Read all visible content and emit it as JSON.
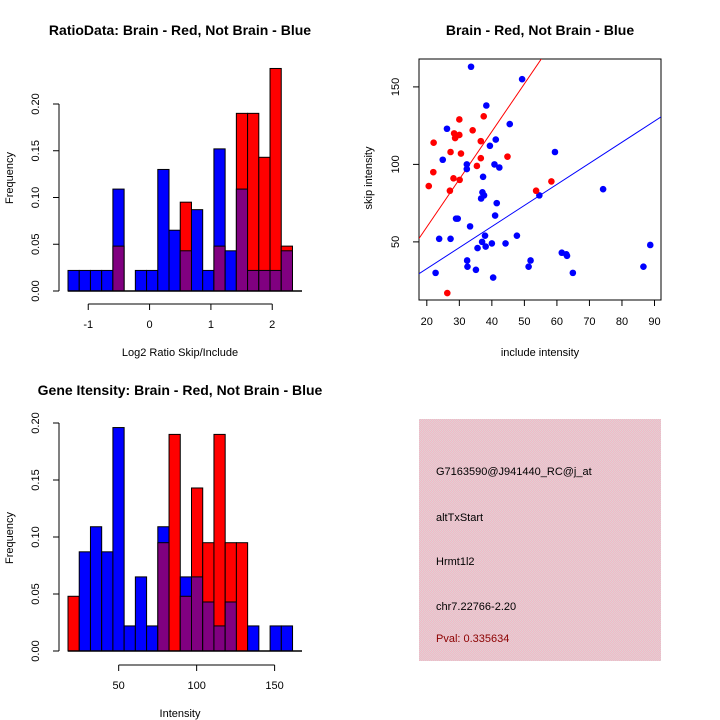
{
  "colors": {
    "brain": "#ff0000",
    "not_brain": "#0000ff",
    "overlap": "#800080",
    "panel_bg": "#eec4cc",
    "pval": "#8b0000"
  },
  "chart_data": [
    {
      "id": "ratio_hist",
      "type": "bar",
      "title": "RatioData: Brain - Red, Not Brain - Blue",
      "xlabel": "Log2 Ratio Skip/Include",
      "ylabel": "Frequency",
      "xlim": [
        -1.33,
        2.42
      ],
      "ylim": [
        0,
        0.2
      ],
      "xticks": [
        -1,
        0,
        1,
        2
      ],
      "xtick_labels": [
        "-1",
        "0",
        "1",
        "2"
      ],
      "yticks": [
        0,
        0.05,
        0.1,
        0.15,
        0.2
      ],
      "ytick_labels": [
        "0.00",
        "0.05",
        "0.10",
        "0.15",
        "0.20"
      ],
      "bin_start": -1.33,
      "bin_width": 0.183,
      "series": [
        {
          "name": "Not Brain",
          "color": "blue",
          "values": [
            0.022,
            0.022,
            0.022,
            0.022,
            0.109,
            0,
            0.022,
            0.022,
            0.13,
            0.065,
            0.043,
            0.087,
            0.022,
            0.152,
            0.043,
            0.109,
            0.022,
            0.022,
            0.022,
            0.043
          ]
        },
        {
          "name": "Brain",
          "color": "red",
          "values": [
            0,
            0,
            0,
            0,
            0.048,
            0,
            0,
            0,
            0,
            0,
            0.095,
            0,
            0,
            0.048,
            0,
            0.19,
            0.19,
            0.143,
            0.238,
            0.048
          ]
        }
      ]
    },
    {
      "id": "scatter",
      "type": "scatter",
      "title": "Brain - Red, Not Brain - Blue",
      "xlabel": "include intensity",
      "ylabel": "skip intensity",
      "xlim": [
        17.6,
        92
      ],
      "ylim": [
        12.5,
        168
      ],
      "xticks": [
        20,
        30,
        40,
        50,
        60,
        70,
        80,
        90
      ],
      "xtick_labels": [
        "20",
        "30",
        "40",
        "50",
        "60",
        "70",
        "80",
        "90"
      ],
      "yticks": [
        50,
        100,
        150
      ],
      "ytick_labels": [
        "50",
        "100",
        "150"
      ],
      "series": [
        {
          "name": "Brain",
          "color": "red",
          "points": [
            [
              20.6,
              86
            ],
            [
              22.1,
              114
            ],
            [
              22.0,
              95
            ],
            [
              26.3,
              17
            ],
            [
              27.1,
              83
            ],
            [
              27.3,
              108
            ],
            [
              28.2,
              91
            ],
            [
              28.4,
              120
            ],
            [
              28.7,
              117
            ],
            [
              28.9,
              118
            ],
            [
              30.0,
              129
            ],
            [
              30.0,
              119
            ],
            [
              30.1,
              90
            ],
            [
              30.5,
              107
            ],
            [
              34.1,
              122
            ],
            [
              35.4,
              99
            ],
            [
              36.6,
              115
            ],
            [
              36.6,
              104
            ],
            [
              37.5,
              131
            ],
            [
              44.8,
              105
            ],
            [
              53.6,
              83
            ],
            [
              58.3,
              89
            ]
          ],
          "fit": {
            "intercept": -2.0,
            "slope": 3.08
          }
        },
        {
          "name": "Not Brain",
          "color": "blue",
          "points": [
            [
              22.7,
              30
            ],
            [
              23.8,
              52
            ],
            [
              24.9,
              103
            ],
            [
              26.2,
              123
            ],
            [
              27.3,
              52
            ],
            [
              29.0,
              65
            ],
            [
              29.5,
              65
            ],
            [
              32.3,
              100
            ],
            [
              32.3,
              97
            ],
            [
              32.4,
              38
            ],
            [
              32.5,
              34
            ],
            [
              33.3,
              60
            ],
            [
              33.6,
              163
            ],
            [
              35.1,
              32
            ],
            [
              35.6,
              46
            ],
            [
              36.7,
              78
            ],
            [
              37.0,
              50
            ],
            [
              37.1,
              82
            ],
            [
              37.3,
              92
            ],
            [
              37.6,
              80
            ],
            [
              37.9,
              54
            ],
            [
              38.1,
              47
            ],
            [
              38.3,
              138
            ],
            [
              39.4,
              112
            ],
            [
              40.0,
              49
            ],
            [
              40.4,
              27
            ],
            [
              40.8,
              100
            ],
            [
              41.0,
              67
            ],
            [
              41.2,
              116
            ],
            [
              41.5,
              75
            ],
            [
              42.3,
              98
            ],
            [
              44.2,
              49
            ],
            [
              45.5,
              126
            ],
            [
              47.7,
              54
            ],
            [
              49.3,
              155
            ],
            [
              51.3,
              34
            ],
            [
              51.9,
              38
            ],
            [
              54.6,
              80
            ],
            [
              59.4,
              108
            ],
            [
              61.5,
              43
            ],
            [
              62.9,
              42
            ],
            [
              63.1,
              41
            ],
            [
              64.9,
              30
            ],
            [
              74.2,
              84
            ],
            [
              86.6,
              34
            ],
            [
              88.7,
              48
            ]
          ],
          "fit": {
            "intercept": 5.5,
            "slope": 1.36
          }
        }
      ]
    },
    {
      "id": "intensity_hist",
      "type": "bar",
      "title": "Gene Itensity: Brain - Red, Not Brain - Blue",
      "xlabel": "Intensity",
      "ylabel": "Frequency",
      "xlim": [
        17.5,
        165
      ],
      "ylim": [
        0,
        0.2
      ],
      "xticks": [
        50,
        100,
        150
      ],
      "xtick_labels": [
        "50",
        "100",
        "150"
      ],
      "yticks": [
        0,
        0.05,
        0.1,
        0.15,
        0.2
      ],
      "ytick_labels": [
        "0.00",
        "0.05",
        "0.10",
        "0.15",
        "0.20"
      ],
      "bin_start": 17.5,
      "bin_width": 7.2,
      "series": [
        {
          "name": "Not Brain",
          "color": "blue",
          "values": [
            0,
            0.087,
            0.109,
            0.087,
            0.196,
            0.022,
            0.065,
            0.022,
            0.109,
            0,
            0.065,
            0.065,
            0.043,
            0.022,
            0.043,
            0,
            0.022,
            0,
            0.022,
            0.022
          ]
        },
        {
          "name": "Brain",
          "color": "red",
          "values": [
            0.048,
            0,
            0,
            0,
            0,
            0,
            0,
            0,
            0.095,
            0.19,
            0.048,
            0.143,
            0.095,
            0.19,
            0.095,
            0.095,
            0,
            0,
            0,
            0
          ]
        }
      ]
    }
  ],
  "info_panel": {
    "probe_id": "G7163590@J941440_RC@j_at",
    "event_type": "altTxStart",
    "gene": "Hrmt1l2",
    "location": "chr7.22766-2.20",
    "pval": "Pval: 0.335634"
  }
}
